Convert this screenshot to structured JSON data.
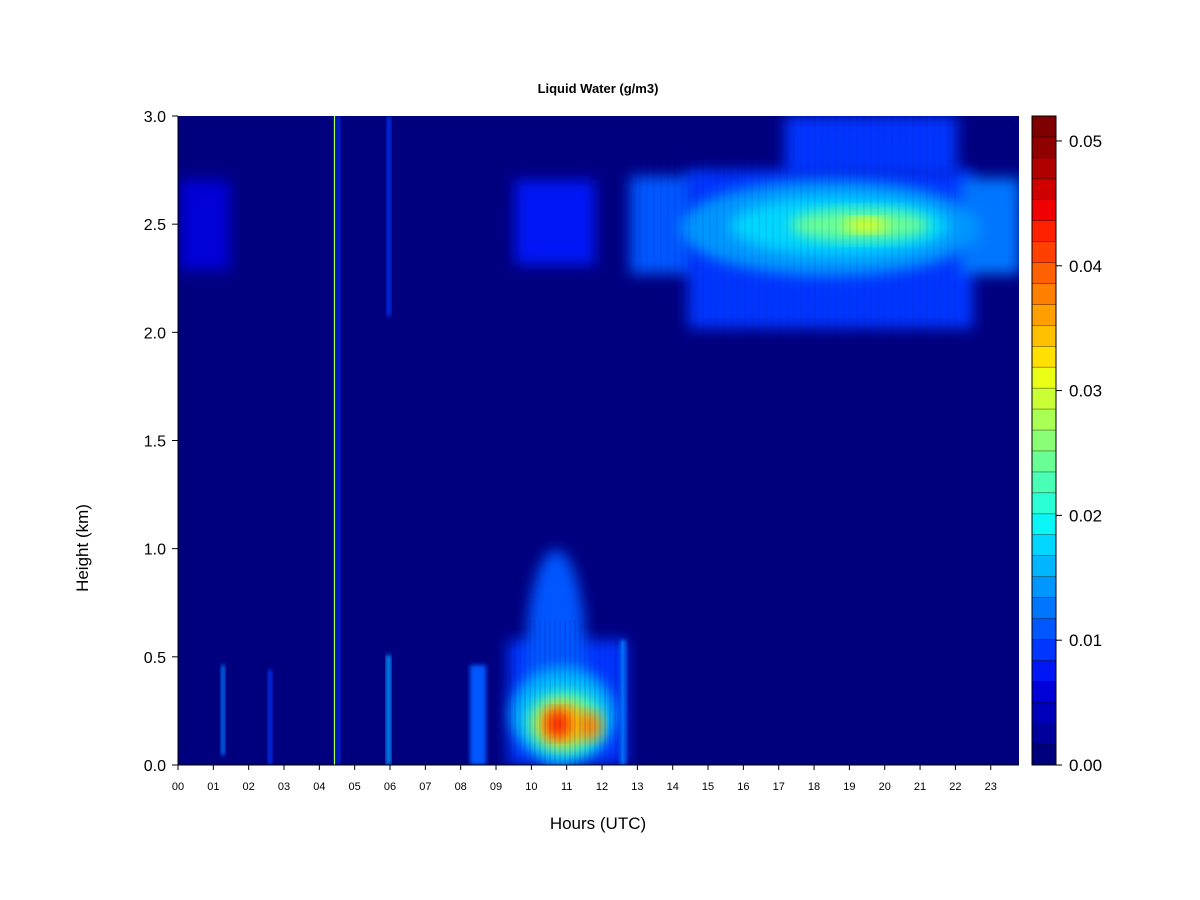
{
  "chart_data": {
    "type": "heatmap",
    "title": "Liquid Water (g/m3)",
    "xlabel": "Hours (UTC)",
    "ylabel": "Height (km)",
    "xlim": [
      0,
      23.8
    ],
    "ylim": [
      0,
      3.0
    ],
    "x_ticks": [
      "00",
      "01",
      "02",
      "03",
      "04",
      "05",
      "06",
      "07",
      "08",
      "09",
      "10",
      "11",
      "12",
      "13",
      "14",
      "15",
      "16",
      "17",
      "18",
      "19",
      "20",
      "21",
      "22",
      "23"
    ],
    "y_ticks": [
      "0.0",
      "0.5",
      "1.0",
      "1.5",
      "2.0",
      "2.5",
      "3.0"
    ],
    "colorbar": {
      "range": [
        0,
        0.052
      ],
      "levels": 21,
      "tick_labels": [
        "0.00",
        "0.01",
        "0.02",
        "0.03",
        "0.04",
        "0.05"
      ],
      "tick_values": [
        0,
        0.01,
        0.02,
        0.03,
        0.04,
        0.05
      ],
      "colors": [
        "#00007f",
        "#00009c",
        "#0000ba",
        "#0000d8",
        "#0016f5",
        "#0036ff",
        "#0056ff",
        "#0076ff",
        "#0096ff",
        "#00b6ff",
        "#00d6ff",
        "#0af5f5",
        "#2affd5",
        "#4affb5",
        "#6aff95",
        "#8aff75",
        "#aaff55",
        "#caff35",
        "#eaff15",
        "#ffe000",
        "#ffc000",
        "#ffa000",
        "#ff8000",
        "#ff6000",
        "#ff4000",
        "#ff2000",
        "#f00000",
        "#d00000",
        "#b00000",
        "#900000",
        "#7f0000"
      ]
    },
    "features": [
      {
        "name": "upper-cloud-layer",
        "x_range": [
          12.8,
          23.8
        ],
        "y_center": 2.5,
        "peak_value": 0.035,
        "peak_at": [
          19.5,
          2.5
        ]
      },
      {
        "name": "lower-cloud",
        "x_range": [
          8.2,
          12.8
        ],
        "y_range": [
          0,
          1.0
        ],
        "peak_value": 0.05,
        "peak_at": [
          10.7,
          0.18
        ]
      },
      {
        "name": "thin-streak",
        "x": 4.4,
        "y_range": [
          0,
          3.0
        ],
        "value": 0.03
      }
    ]
  }
}
